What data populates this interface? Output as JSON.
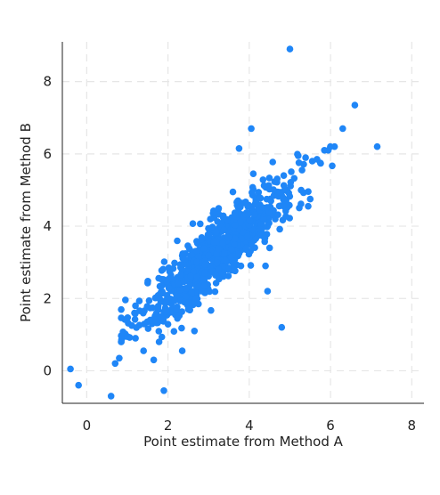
{
  "chart_data": {
    "type": "scatter",
    "title": "",
    "xlabel": "Point estimate from Method A",
    "ylabel": "Point estimate from Method B",
    "xlim": [
      -0.6,
      8.3
    ],
    "ylim": [
      -0.9,
      9.1
    ],
    "xticks": [
      "0",
      "2",
      "4",
      "6",
      "8"
    ],
    "yticks": [
      "0",
      "2",
      "4",
      "6",
      "8"
    ],
    "grid": true,
    "legend": "none",
    "colors": {
      "points": "#1f86f7",
      "grid": "#e6e6e6",
      "axis": "#222222",
      "text": "#222222"
    },
    "series": [
      {
        "x": [
          5.0,
          6.6,
          6.3,
          7.15,
          4.05,
          3.75,
          5.85,
          5.55,
          5.75,
          5.3,
          4.1,
          4.85,
          5.5,
          5.45,
          2.65,
          2.35,
          1.9,
          2.75,
          2.5,
          0.6,
          -0.4,
          -0.2,
          1.2,
          1.65,
          4.45,
          4.8,
          4.4,
          4.5,
          1.0,
          1.4,
          0.7,
          0.8,
          1.2
        ],
        "y": [
          8.9,
          7.35,
          6.7,
          6.2,
          6.7,
          6.15,
          6.1,
          5.8,
          5.75,
          5.55,
          5.45,
          5.4,
          4.75,
          4.55,
          1.1,
          0.55,
          -0.55,
          1.85,
          1.7,
          -0.7,
          0.05,
          -0.4,
          1.8,
          0.3,
          2.2,
          1.2,
          2.9,
          3.4,
          0.95,
          0.55,
          0.2,
          0.35,
          0.9
        ]
      }
    ]
  }
}
